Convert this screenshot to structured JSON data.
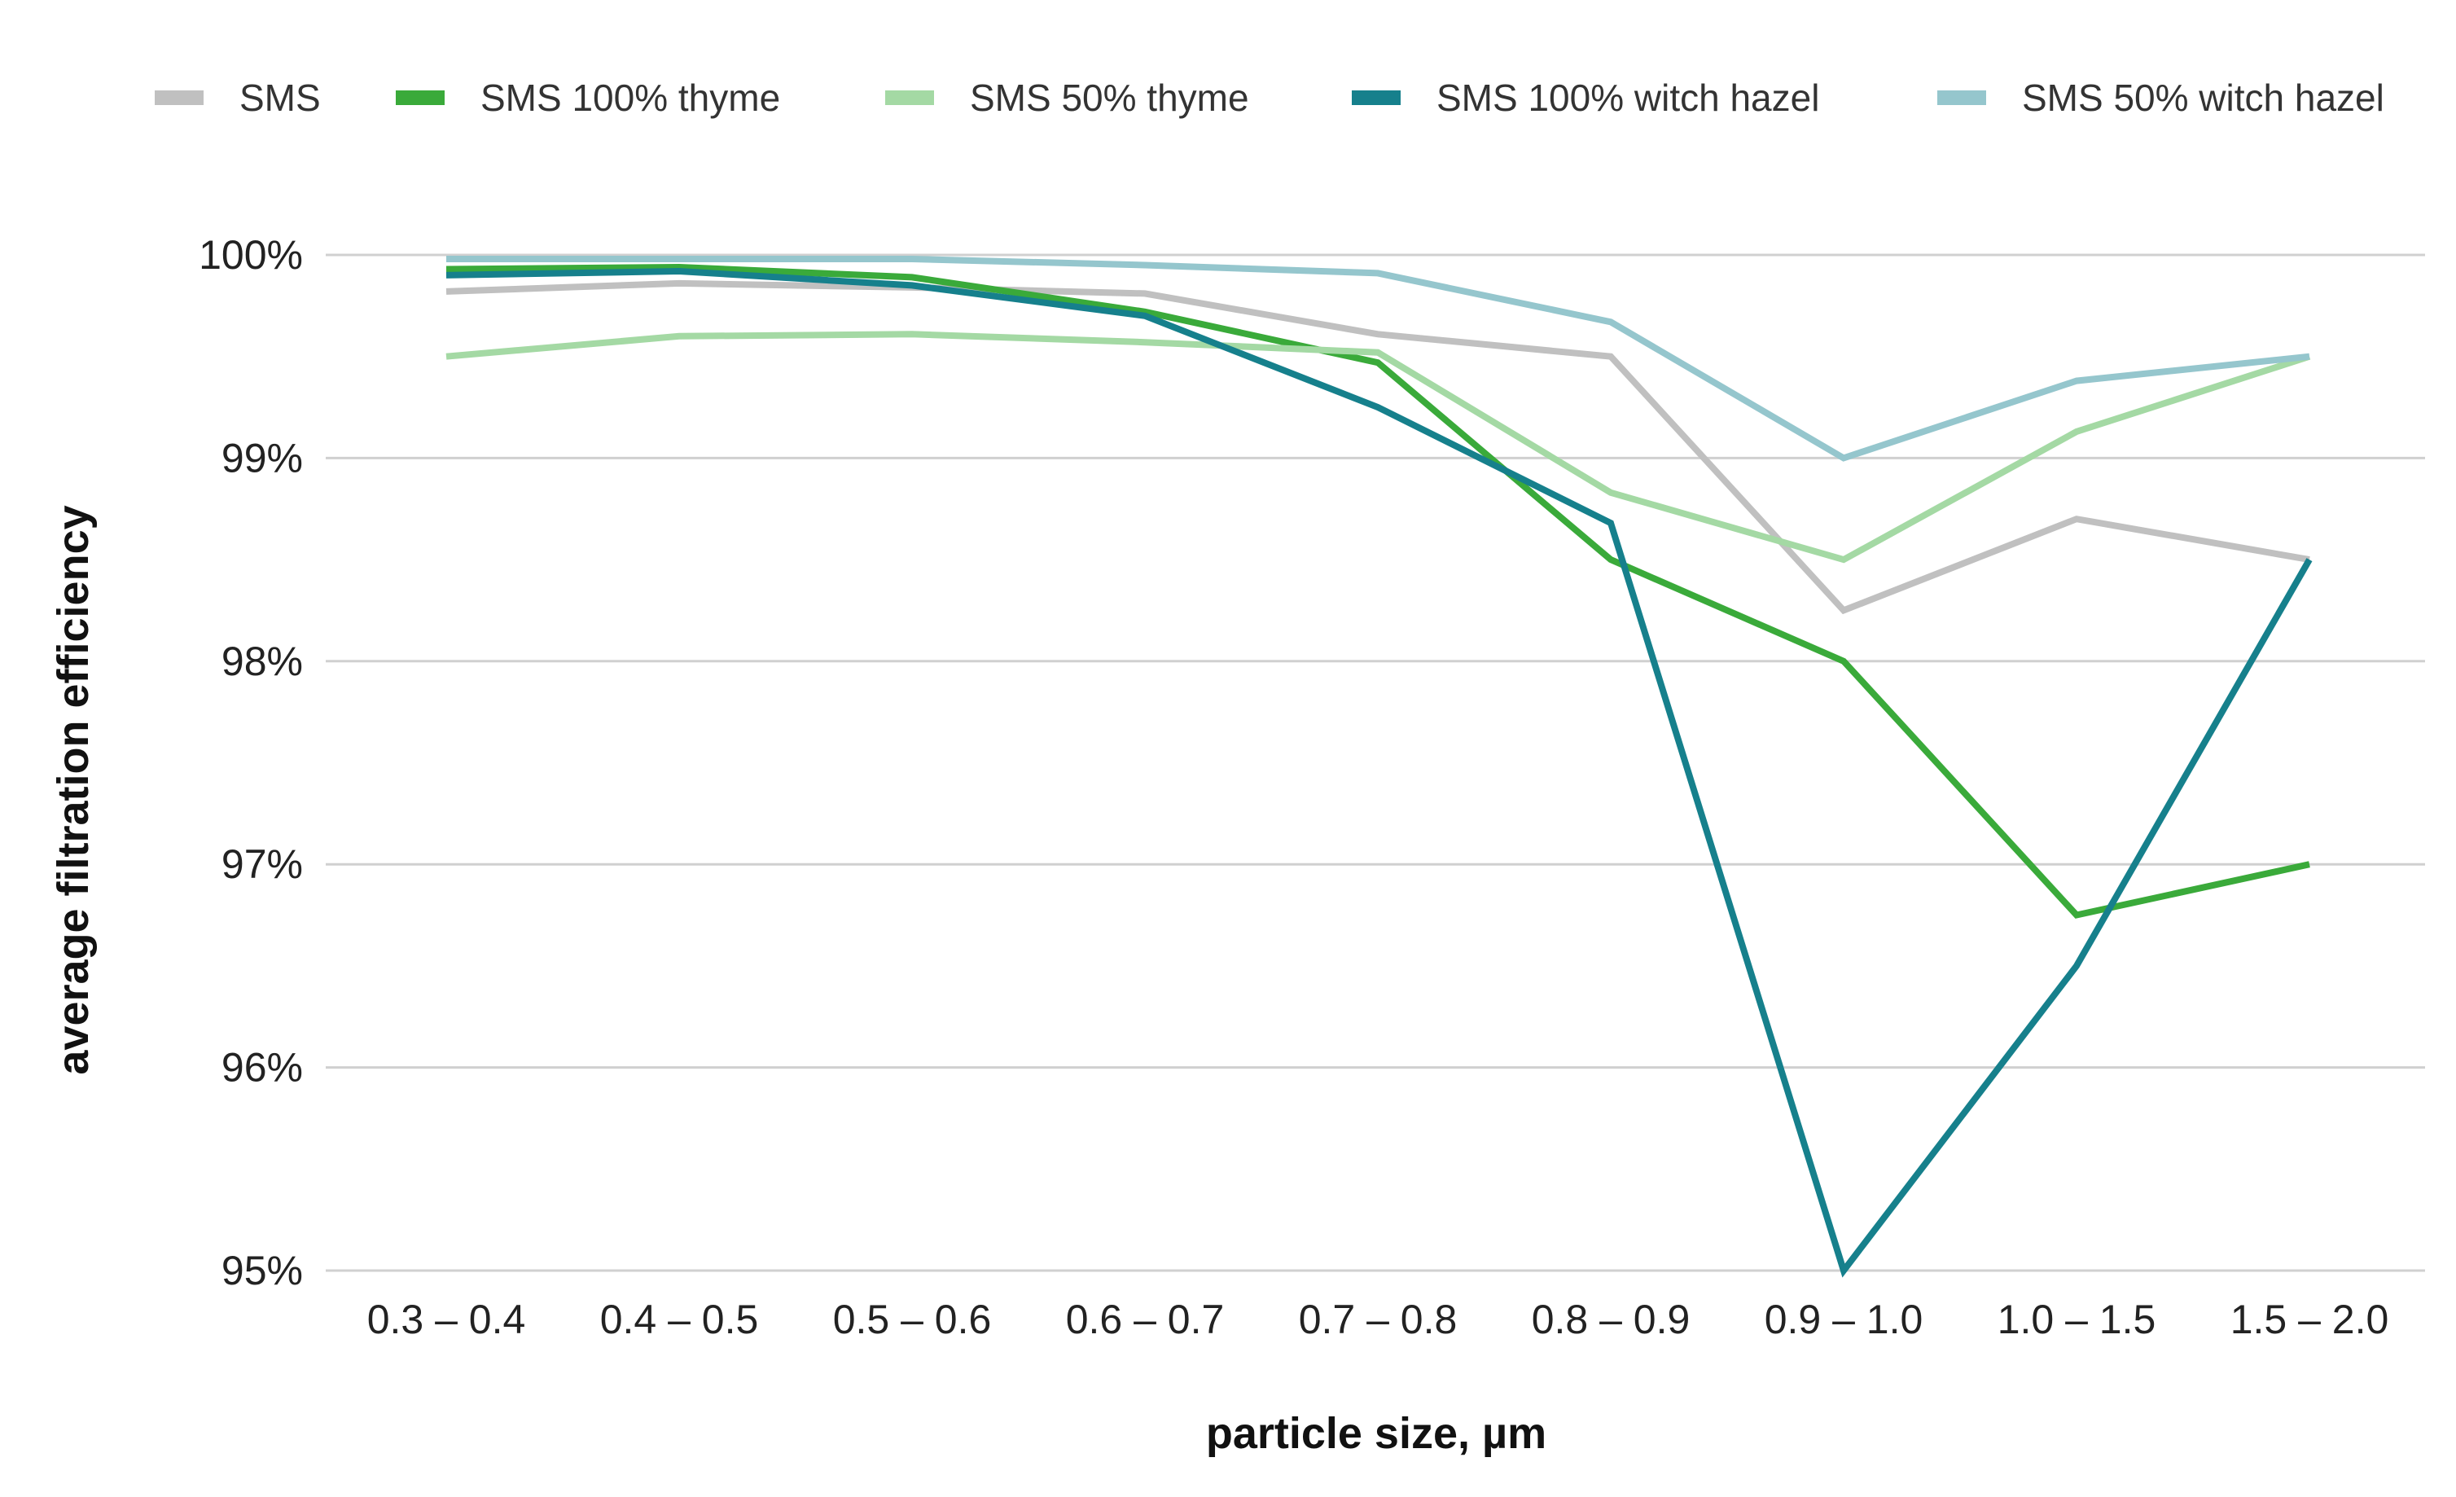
{
  "chart_data": {
    "type": "line",
    "title": "",
    "xlabel": "particle size, µm",
    "ylabel": "average filtration efficiency",
    "categories": [
      "0.3 – 0.4",
      "0.4 – 0.5",
      "0.5 – 0.6",
      "0.6 – 0.7",
      "0.7 – 0.8",
      "0.8 – 0.9",
      "0.9 – 1.0",
      "1.0 – 1.5",
      "1.5 – 2.0"
    ],
    "ylim": [
      95,
      100
    ],
    "yticks": [
      95,
      96,
      97,
      98,
      99,
      100
    ],
    "ytick_labels": [
      "95%",
      "96%",
      "97%",
      "98%",
      "99%",
      "100%"
    ],
    "grid": true,
    "legend_position": "top",
    "series": [
      {
        "name": "SMS",
        "color": "#c0c0c0",
        "values": [
          99.82,
          99.86,
          99.84,
          99.81,
          99.61,
          99.5,
          98.25,
          98.7,
          98.5
        ]
      },
      {
        "name": "SMS 100% thyme",
        "color": "#3aaa3a",
        "values": [
          99.93,
          99.94,
          99.89,
          99.72,
          99.47,
          98.5,
          98.0,
          96.75,
          97.0
        ]
      },
      {
        "name": "SMS 50% thyme",
        "color": "#a4d9a4",
        "values": [
          99.5,
          99.6,
          99.61,
          99.57,
          99.52,
          98.83,
          98.5,
          99.13,
          99.5
        ]
      },
      {
        "name": "SMS 100% witch hazel",
        "color": "#16808c",
        "values": [
          99.9,
          99.92,
          99.85,
          99.7,
          99.25,
          98.68,
          95.0,
          96.5,
          98.5
        ]
      },
      {
        "name": "SMS 50% witch hazel",
        "color": "#95c6cd",
        "values": [
          99.98,
          99.98,
          99.98,
          99.95,
          99.91,
          99.67,
          99.0,
          99.38,
          99.5
        ]
      }
    ]
  }
}
